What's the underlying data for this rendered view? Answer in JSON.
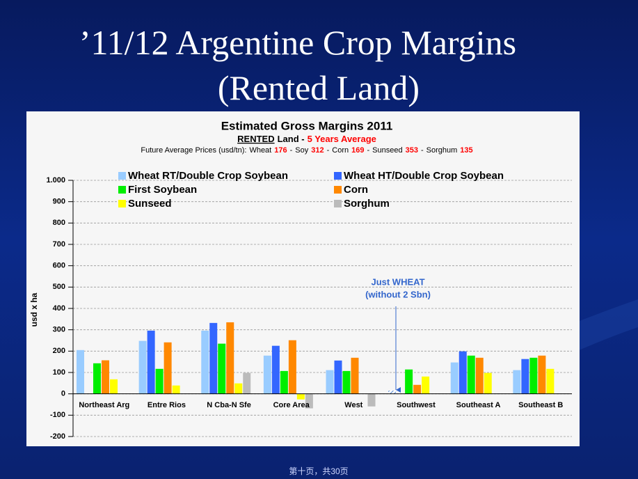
{
  "slide_title": [
    "’11/12 Argentine Crop Margins",
    "(Rented Land)"
  ],
  "footer": "第十页，共30页",
  "chart_data": {
    "type": "bar",
    "title": "Estimated Gross Margins 2011",
    "subtitle": [
      "RENTED",
      "Land -",
      "5 Years Average"
    ],
    "prices_label": "Future Average Prices (usd/tn):",
    "prices_separator": "-",
    "prices": [
      {
        "name": "Wheat",
        "value": 176
      },
      {
        "name": "Soy",
        "value": 312
      },
      {
        "name": "Corn",
        "value": 169
      },
      {
        "name": "Sunseed",
        "value": 353
      },
      {
        "name": "Sorghum",
        "value": 135
      }
    ],
    "y_label": "usd x ha",
    "annotation": [
      "Just WHEAT",
      "(without 2 Sbn)"
    ],
    "categories": [
      "Northeast Arg",
      "Entre Rios",
      "N Cba-N Sfe",
      "Core Area",
      "West",
      "Southwest",
      "Southeast A",
      "Southeast B"
    ],
    "series": [
      {
        "name": "Wheat RT/Double Crop Soybean",
        "color": "#99ccff",
        "values": [
          205,
          248,
          296,
          179,
          111,
          15,
          147,
          111
        ]
      },
      {
        "name": "Wheat HT/Double Crop Soybean",
        "color": "#3366ff",
        "values": [
          null,
          296,
          332,
          225,
          156,
          null,
          199,
          163
        ]
      },
      {
        "name": "First Soybean",
        "color": "#00ee00",
        "values": [
          143,
          117,
          235,
          107,
          107,
          114,
          179,
          169
        ]
      },
      {
        "name": "Corn",
        "color": "#ff8800",
        "values": [
          157,
          241,
          335,
          251,
          169,
          42,
          169,
          179
        ]
      },
      {
        "name": "Sunseed",
        "color": "#ffff00",
        "values": [
          68,
          39,
          49,
          -26,
          null,
          81,
          98,
          117
        ]
      },
      {
        "name": "Sorghum",
        "color": "#bbbbbb",
        "values": [
          null,
          null,
          98,
          -68,
          -59,
          null,
          null,
          null
        ]
      }
    ],
    "ylim": [
      -200,
      1000
    ],
    "yticks": [
      -200,
      -100,
      0,
      100,
      200,
      300,
      400,
      500,
      600,
      700,
      800,
      900,
      {
        "value": 1000,
        "label": "1.000"
      }
    ],
    "grid": true
  }
}
